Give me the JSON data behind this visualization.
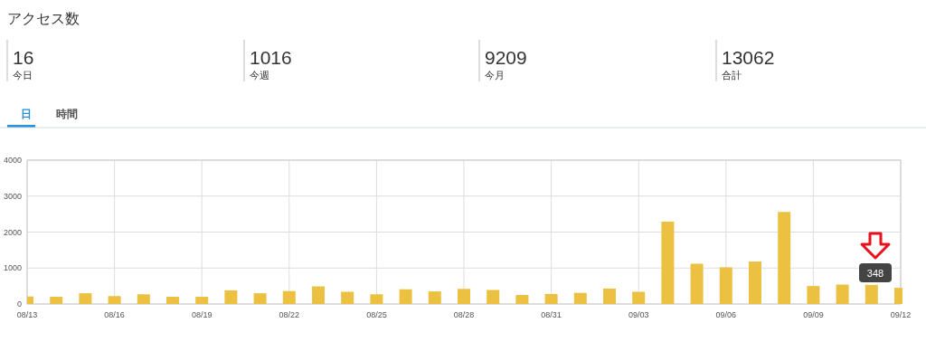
{
  "chart_data": [
    {
      "type": "other",
      "title": "アクセス数",
      "annotations": [
        "16",
        "今日",
        "1016",
        "今週",
        "9209",
        "今月",
        "13062",
        "合計",
        "日",
        "時間"
      ]
    },
    {
      "type": "bar",
      "categories": [
        "08/13",
        null,
        null,
        "08/16",
        null,
        null,
        "08/19",
        null,
        null,
        "08/22",
        null,
        null,
        "08/25",
        null,
        null,
        "08/28",
        null,
        null,
        "08/31",
        null,
        null,
        "09/03",
        null,
        null,
        "09/06",
        null,
        null,
        "09/09",
        null,
        null,
        "09/12"
      ],
      "values": [
        210,
        200,
        300,
        220,
        270,
        200,
        200,
        380,
        300,
        360,
        490,
        340,
        270,
        410,
        350,
        420,
        390,
        250,
        280,
        310,
        430,
        340,
        2290,
        1120,
        1020,
        1180,
        2560,
        500,
        540,
        530,
        450
      ],
      "color": "#ecc141",
      "ylim": [
        0,
        4000
      ],
      "yticks": [
        0,
        1000,
        2000,
        3000,
        4000
      ],
      "grid": true,
      "annotations": [
        "348"
      ]
    }
  ]
}
